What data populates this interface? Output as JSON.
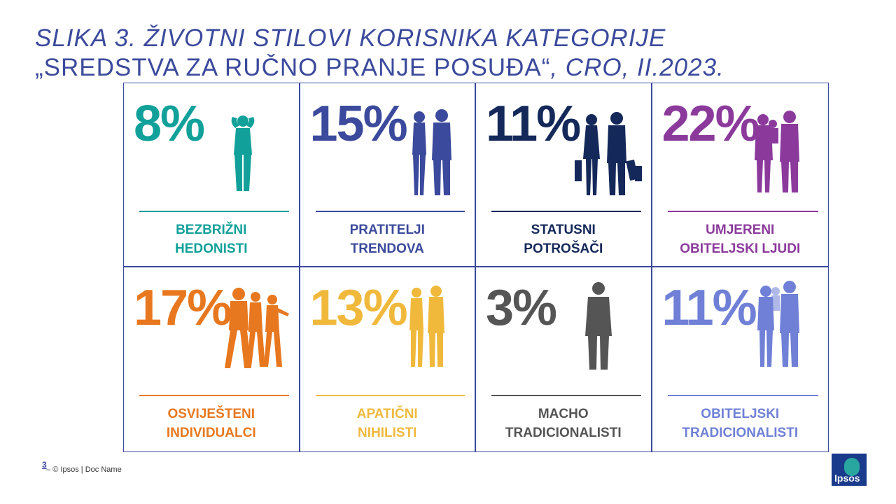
{
  "title": {
    "line1": "SLIKA 3. ŽIVOTNI STILOVI KORISNIKA KATEGORIJE",
    "line2_main": "„SREDSTVA ZA RUČNO PRANJE POSUĐA“",
    "line2_tail": ", CRO, II.2023."
  },
  "segments": [
    {
      "percent": "8%",
      "line1": "BEZBRIŽNI",
      "line2": "HEDONISTI",
      "color": "#12a19a",
      "icon": "relaxed-man-icon"
    },
    {
      "percent": "15%",
      "line1": "PRATITELJI",
      "line2": "TRENDOVA",
      "color": "#3b4a9c",
      "icon": "couple-icon"
    },
    {
      "percent": "11%",
      "line1": "STATUSNI",
      "line2": "POTROŠAČI",
      "color": "#14285a",
      "icon": "shopping-couple-icon"
    },
    {
      "percent": "22%",
      "line1": "UMJERENI",
      "line2": "OBITELJSKI LJUDI",
      "color": "#8b3a9c",
      "icon": "family-icon"
    },
    {
      "percent": "17%",
      "line1": "OSVIJEŠTENI",
      "line2": "INDIVIDUALCI",
      "color": "#e8781f",
      "icon": "walking-group-icon"
    },
    {
      "percent": "13%",
      "line1": "APATIČNI",
      "line2": "NIHILISTI",
      "color": "#f0b93c",
      "icon": "standing-pair-icon"
    },
    {
      "percent": "3%",
      "line1": "MACHO",
      "line2": "TRADICIONALISTI",
      "color": "#555555",
      "icon": "man-in-suit-icon"
    },
    {
      "percent": "11%",
      "line1": "OBITELJSKI",
      "line2": "TRADICIONALISTI",
      "color": "#6f80d6",
      "icon": "traditional-family-icon"
    }
  ],
  "footer": {
    "page_number": "3",
    "text": "– © Ipsos | Doc Name"
  },
  "logo": {
    "text": "Ipsos",
    "color": "#1a3a8c",
    "accent": "#2aa6a0",
    "icon": "ipsos-logo-icon"
  }
}
